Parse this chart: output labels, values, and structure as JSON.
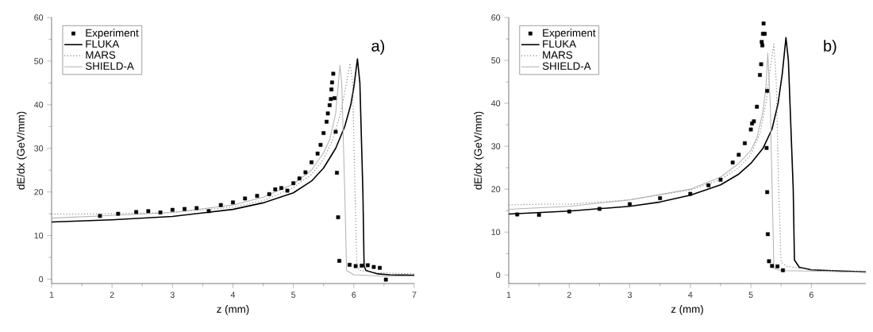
{
  "chart_data": [
    {
      "type": "line",
      "xlabel": "z (mm)",
      "ylabel": "dE/dx (GeV/mm)",
      "annotations": [
        "a)"
      ],
      "xlim": [
        1,
        7
      ],
      "ylim": [
        -1,
        60
      ],
      "xticks": [
        1,
        2,
        3,
        4,
        5,
        6,
        7
      ],
      "yticks": [
        0,
        10,
        20,
        30,
        40,
        50,
        60
      ],
      "legend": "top left",
      "grid": false,
      "series": [
        {
          "name": "Experiment",
          "type": "scatter",
          "marker": "square",
          "color": "#000000",
          "x": [
            1.8,
            2.1,
            2.4,
            2.6,
            2.8,
            3.0,
            3.2,
            3.4,
            3.6,
            3.8,
            4.0,
            4.2,
            4.4,
            4.6,
            4.7,
            4.8,
            4.9,
            5.0,
            5.1,
            5.2,
            5.3,
            5.4,
            5.45,
            5.5,
            5.55,
            5.57,
            5.6,
            5.62,
            5.63,
            5.64,
            5.66,
            5.68,
            5.7,
            5.72,
            5.74,
            5.76,
            5.93,
            6.03,
            6.13,
            6.23,
            6.33,
            6.43,
            6.53
          ],
          "values": [
            14.5,
            15.0,
            15.4,
            15.6,
            15.3,
            15.9,
            16.1,
            16.3,
            15.6,
            17.0,
            17.6,
            18.5,
            19.1,
            19.5,
            20.6,
            20.9,
            20.3,
            22.0,
            23.1,
            24.5,
            26.8,
            28.8,
            30.8,
            33.5,
            36.1,
            38.0,
            39.9,
            41.3,
            43.5,
            45.1,
            47.1,
            41.5,
            33.8,
            24.4,
            14.2,
            4.2,
            3.3,
            3.0,
            3.1,
            3.2,
            2.8,
            2.6,
            -0.1
          ]
        },
        {
          "name": "FLUKA",
          "line_style": "solid",
          "color": "#000000",
          "x": [
            1,
            2,
            3,
            4,
            4.5,
            5,
            5.3,
            5.5,
            5.7,
            5.85,
            5.95,
            6.0,
            6.06,
            6.1,
            6.15,
            6.17,
            6.2,
            6.4,
            6.6,
            7
          ],
          "values": [
            13.1,
            13.6,
            14.4,
            16.0,
            17.5,
            19.8,
            22.5,
            25.5,
            30.0,
            35.0,
            40.0,
            44.0,
            50.5,
            45.0,
            20.0,
            3.0,
            2.0,
            1.2,
            1.0,
            0.9
          ]
        },
        {
          "name": "MARS",
          "line_style": "dotted",
          "color": "#707070",
          "x": [
            1,
            2,
            3,
            4,
            4.5,
            5,
            5.3,
            5.5,
            5.65,
            5.78,
            5.88,
            5.94,
            5.98,
            6.02,
            6.05,
            6.1,
            6.4,
            7
          ],
          "values": [
            14.9,
            15.0,
            15.3,
            16.5,
            18.0,
            21.0,
            24.0,
            27.5,
            32.0,
            38.0,
            45.0,
            49.5,
            45.0,
            20.0,
            3.0,
            2.0,
            1.5,
            1.2
          ]
        },
        {
          "name": "SHIELD-A",
          "line_style": "solid",
          "color": "#b4b4b4",
          "x": [
            1,
            2,
            3,
            4,
            4.5,
            5,
            5.3,
            5.5,
            5.6,
            5.7,
            5.77,
            5.8,
            5.85,
            5.88,
            6.0,
            6.5,
            7
          ],
          "values": [
            14.0,
            14.6,
            15.3,
            17.0,
            18.8,
            21.8,
            25.0,
            29.0,
            32.0,
            38.0,
            49.0,
            45.0,
            20.0,
            2.0,
            1.0,
            0.7,
            0.7
          ]
        }
      ]
    },
    {
      "type": "line",
      "xlabel": "z (mm)",
      "ylabel": "dE/dx (GeV/mm)",
      "annotations": [
        "b)"
      ],
      "xlim": [
        1,
        6.9
      ],
      "ylim": [
        -2,
        60
      ],
      "xticks": [
        1,
        2,
        3,
        4,
        5,
        6
      ],
      "yticks": [
        0,
        10,
        20,
        30,
        40,
        50,
        60
      ],
      "legend": "top left",
      "grid": false,
      "series": [
        {
          "name": "Experiment",
          "type": "scatter",
          "marker": "square",
          "color": "#000000",
          "x": [
            1.14,
            1.5,
            2.0,
            2.5,
            3.0,
            3.5,
            4.0,
            4.3,
            4.5,
            4.7,
            4.8,
            4.9,
            5.0,
            5.02,
            5.05,
            5.1,
            5.15,
            5.17,
            5.19,
            5.18,
            5.2,
            5.23,
            5.21,
            5.27,
            5.26,
            5.27,
            5.28,
            5.3,
            5.35,
            5.44,
            5.53
          ],
          "values": [
            14.1,
            14.0,
            14.8,
            15.4,
            16.5,
            17.9,
            18.9,
            20.9,
            22.2,
            26.2,
            28.0,
            30.7,
            33.9,
            35.3,
            35.8,
            39.2,
            46.6,
            49.1,
            53.5,
            54.3,
            56.2,
            56.2,
            58.6,
            42.9,
            29.6,
            19.3,
            9.5,
            3.2,
            2.1,
            2.0,
            1.1
          ]
        },
        {
          "name": "FLUKA",
          "line_style": "solid",
          "color": "#000000",
          "x": [
            1,
            2,
            3,
            3.5,
            4,
            4.5,
            4.8,
            5,
            5.2,
            5.35,
            5.45,
            5.52,
            5.58,
            5.62,
            5.7,
            5.72,
            5.8,
            6,
            6.5,
            6.9
          ],
          "values": [
            14.2,
            14.9,
            16.0,
            17.0,
            18.6,
            21.0,
            23.5,
            26.0,
            29.5,
            34.0,
            40.0,
            47.0,
            55.3,
            50.0,
            20.0,
            3.5,
            1.8,
            1.2,
            0.9,
            0.7
          ]
        },
        {
          "name": "MARS",
          "line_style": "dotted",
          "color": "#707070",
          "x": [
            1,
            1.5,
            2,
            3,
            4,
            4.5,
            4.8,
            5,
            5.15,
            5.25,
            5.32,
            5.38,
            5.42,
            5.46,
            5.5,
            5.6,
            6,
            6.9
          ],
          "values": [
            16.3,
            16.5,
            16.5,
            17.5,
            19.8,
            22.2,
            25.0,
            28.0,
            33.0,
            40.0,
            48.0,
            53.8,
            45.0,
            20.0,
            3.0,
            2.0,
            1.2,
            0.8
          ]
        },
        {
          "name": "SHIELD-A",
          "line_style": "solid",
          "color": "#b4b4b4",
          "x": [
            1,
            2,
            3,
            4,
            4.5,
            4.8,
            5,
            5.1,
            5.2,
            5.25,
            5.28,
            5.32,
            5.36,
            5.38,
            5.5,
            6,
            6.9
          ],
          "values": [
            15.3,
            16.0,
            17.5,
            20.0,
            22.8,
            26.0,
            29.0,
            32.0,
            38.0,
            44.0,
            51.7,
            40.0,
            15.0,
            1.5,
            1.0,
            0.9,
            0.6
          ]
        }
      ]
    }
  ]
}
